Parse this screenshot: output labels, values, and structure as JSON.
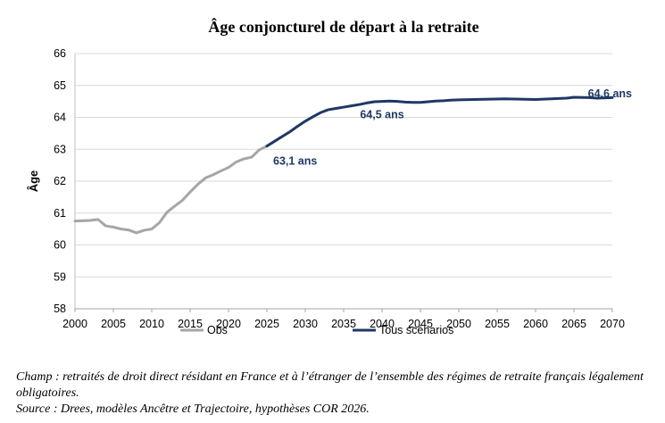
{
  "chart_data": {
    "type": "line",
    "title": "Âge conjoncturel de départ à la retraite",
    "ylabel": "Âge",
    "xlabel": "",
    "xlim": [
      2000,
      2070
    ],
    "ylim": [
      58,
      66
    ],
    "x_ticks": [
      "2000",
      "2005",
      "2010",
      "2015",
      "2020",
      "2025",
      "2030",
      "2035",
      "2040",
      "2045",
      "2050",
      "2055",
      "2060",
      "2065",
      "2070"
    ],
    "y_ticks": [
      "58",
      "59",
      "60",
      "61",
      "62",
      "63",
      "64",
      "65",
      "66"
    ],
    "grid": "horizontal",
    "legend_position": "bottom",
    "series": [
      {
        "name": "Obs",
        "color": "#a6a6a6",
        "points": [
          [
            2000,
            60.75
          ],
          [
            2001,
            60.76
          ],
          [
            2002,
            60.77
          ],
          [
            2003,
            60.8
          ],
          [
            2004,
            60.6
          ],
          [
            2005,
            60.56
          ],
          [
            2006,
            60.5
          ],
          [
            2007,
            60.47
          ],
          [
            2008,
            60.38
          ],
          [
            2009,
            60.46
          ],
          [
            2010,
            60.5
          ],
          [
            2011,
            60.7
          ],
          [
            2012,
            61.03
          ],
          [
            2013,
            61.22
          ],
          [
            2014,
            61.4
          ],
          [
            2015,
            61.66
          ],
          [
            2016,
            61.9
          ],
          [
            2017,
            62.1
          ],
          [
            2018,
            62.2
          ],
          [
            2019,
            62.32
          ],
          [
            2020,
            62.43
          ],
          [
            2021,
            62.6
          ],
          [
            2022,
            62.7
          ],
          [
            2023,
            62.75
          ],
          [
            2024,
            62.98
          ],
          [
            2025,
            63.1
          ]
        ]
      },
      {
        "name": "Tous scénarios",
        "color": "#1f3864",
        "points": [
          [
            2025,
            63.1
          ],
          [
            2026,
            63.25
          ],
          [
            2027,
            63.4
          ],
          [
            2028,
            63.55
          ],
          [
            2029,
            63.72
          ],
          [
            2030,
            63.88
          ],
          [
            2031,
            64.02
          ],
          [
            2032,
            64.15
          ],
          [
            2033,
            64.24
          ],
          [
            2034,
            64.28
          ],
          [
            2035,
            64.32
          ],
          [
            2036,
            64.36
          ],
          [
            2037,
            64.4
          ],
          [
            2038,
            64.45
          ],
          [
            2039,
            64.49
          ],
          [
            2040,
            64.5
          ],
          [
            2041,
            64.51
          ],
          [
            2042,
            64.5
          ],
          [
            2043,
            64.48
          ],
          [
            2044,
            64.47
          ],
          [
            2045,
            64.47
          ],
          [
            2046,
            64.49
          ],
          [
            2047,
            64.51
          ],
          [
            2048,
            64.52
          ],
          [
            2049,
            64.54
          ],
          [
            2050,
            64.55
          ],
          [
            2052,
            64.56
          ],
          [
            2054,
            64.57
          ],
          [
            2056,
            64.58
          ],
          [
            2058,
            64.57
          ],
          [
            2060,
            64.56
          ],
          [
            2062,
            64.58
          ],
          [
            2064,
            64.6
          ],
          [
            2065,
            64.63
          ],
          [
            2067,
            64.62
          ],
          [
            2068,
            64.6
          ],
          [
            2070,
            64.62
          ]
        ]
      }
    ],
    "annotations": [
      {
        "text": "63,1 ans",
        "x": 2025,
        "y": 63.1
      },
      {
        "text": "64,5 ans",
        "x": 2040,
        "y": 64.5
      },
      {
        "text": "64,6 ans",
        "x": 2070,
        "y": 64.6
      }
    ]
  },
  "notes": {
    "champ": "Champ : retraités de droit direct résidant en France et à l’étranger de l’ensemble des régimes de retraite français légalement obligatoires.",
    "source": "Source : Drees, modèles Ancêtre et Trajectoire, hypothèses COR 2026."
  }
}
